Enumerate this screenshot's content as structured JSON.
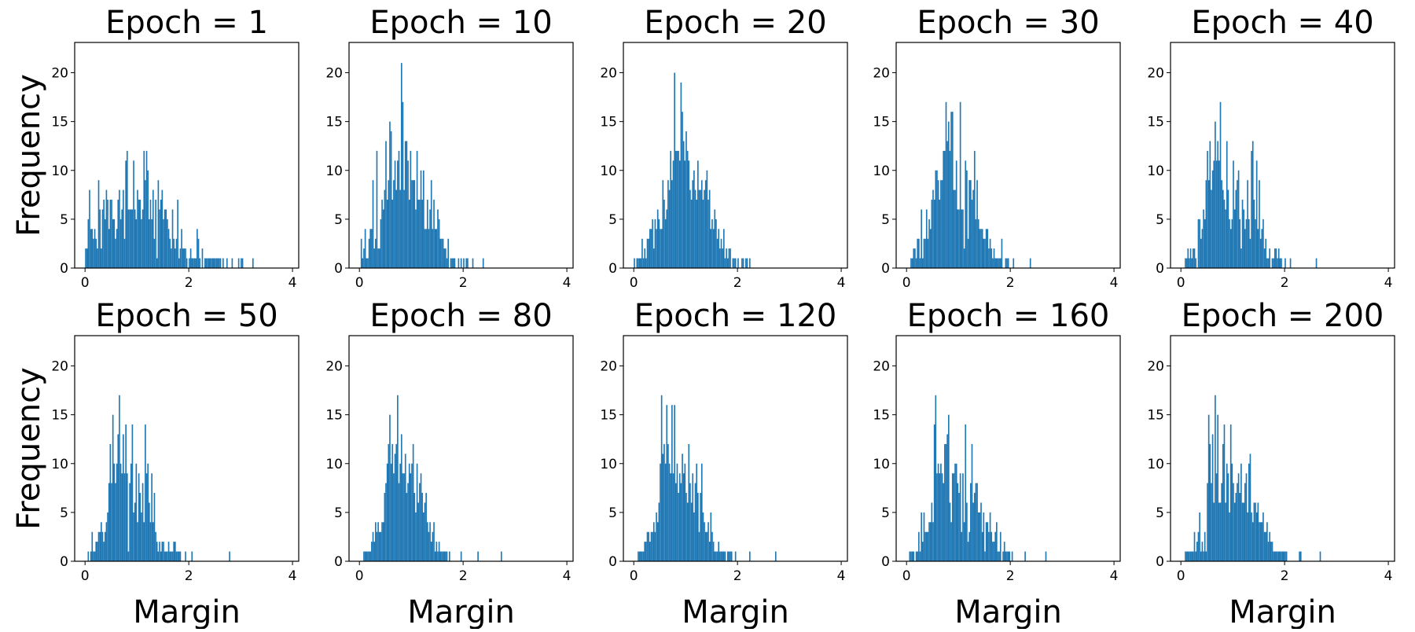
{
  "chart_data": {
    "type": "bar",
    "layout": "2x5 grid of histograms",
    "bar_color": "#1f77b4",
    "bin_start": 0,
    "bin_width": 0.025,
    "xlabel": "Margin",
    "ylabel": "Frequency",
    "xlim": [
      -0.2,
      4.12
    ],
    "ylim": [
      0,
      23.1
    ],
    "xticks": [
      "0",
      "2",
      "4"
    ],
    "yticks": [
      "0",
      "5",
      "10",
      "15",
      "20"
    ],
    "panels": [
      {
        "title": "Epoch = 1",
        "counts": [
          2,
          2,
          5,
          8,
          4,
          4,
          3,
          4,
          3,
          2,
          9,
          6,
          2,
          6,
          7,
          5,
          8,
          7,
          4,
          7,
          7,
          5,
          5,
          3,
          4,
          7,
          8,
          5,
          6,
          8,
          3,
          11,
          12,
          6,
          6,
          6,
          6,
          11,
          6,
          5,
          8,
          7,
          7,
          5,
          6,
          12,
          9,
          12,
          10,
          5,
          7,
          5,
          8,
          3,
          7,
          1,
          9,
          6,
          7,
          8,
          5,
          6,
          6,
          5,
          4,
          3,
          2,
          6,
          3,
          2,
          3,
          7,
          1,
          2,
          4,
          2,
          2,
          2,
          1,
          0,
          1,
          2,
          1,
          1,
          1,
          1,
          4,
          3,
          1,
          0,
          2,
          0,
          1,
          1,
          1,
          1,
          1,
          1,
          1,
          1,
          1,
          1,
          1,
          1,
          1,
          0,
          1,
          0,
          0,
          1,
          0,
          0,
          0,
          1,
          0,
          0,
          0,
          0,
          1,
          0,
          1,
          1,
          0,
          0,
          0,
          0,
          0,
          0,
          0,
          1,
          0,
          0
        ]
      },
      {
        "title": "Epoch = 10",
        "counts": [
          0,
          3,
          1,
          2,
          4,
          1,
          1,
          3,
          4,
          4,
          9,
          2,
          3,
          12,
          2,
          2,
          5,
          7,
          6,
          8,
          13,
          7,
          9,
          15,
          14,
          7,
          9,
          11,
          8,
          11,
          12,
          8,
          21,
          17,
          8,
          13,
          13,
          11,
          7,
          12,
          9,
          9,
          9,
          6,
          12,
          7,
          7,
          10,
          7,
          10,
          4,
          4,
          7,
          4,
          6,
          9,
          4,
          7,
          4,
          4,
          6,
          5,
          3,
          3,
          3,
          2,
          2,
          1,
          3,
          0,
          1,
          1,
          1,
          1,
          0,
          0,
          1,
          0,
          1,
          0,
          1,
          0,
          1,
          1,
          0,
          0,
          0,
          1,
          0,
          0,
          0,
          0,
          0,
          0,
          0,
          1
        ]
      },
      {
        "title": "Epoch = 20",
        "counts": [
          1,
          0,
          1,
          1,
          1,
          1,
          3,
          1,
          2,
          1,
          3,
          3,
          4,
          4,
          5,
          2,
          5,
          4,
          6,
          5,
          4,
          4,
          9,
          7,
          5,
          6,
          9,
          8,
          12,
          9,
          11,
          20,
          12,
          12,
          12,
          11,
          19,
          16,
          13,
          11,
          14,
          12,
          11,
          8,
          7,
          9,
          10,
          8,
          7,
          11,
          8,
          8,
          9,
          7,
          8,
          9,
          10,
          7,
          8,
          4,
          5,
          4,
          6,
          5,
          3,
          4,
          2,
          3,
          2,
          4,
          1,
          2,
          1,
          2,
          2,
          0,
          1,
          1,
          1,
          0,
          1,
          0,
          0,
          1,
          1,
          0,
          1,
          1,
          0,
          1
        ]
      },
      {
        "title": "Epoch = 30",
        "counts": [
          0,
          0,
          0,
          1,
          1,
          2,
          2,
          1,
          3,
          3,
          1,
          6,
          1,
          3,
          3,
          6,
          3,
          5,
          4,
          7,
          8,
          7,
          10,
          10,
          9,
          7,
          9,
          9,
          12,
          12,
          17,
          13,
          15,
          12,
          16,
          16,
          8,
          8,
          11,
          6,
          6,
          17,
          6,
          6,
          2,
          11,
          10,
          3,
          9,
          9,
          7,
          8,
          12,
          5,
          9,
          5,
          4,
          4,
          4,
          3,
          3,
          4,
          4,
          2,
          3,
          2,
          1,
          2,
          1,
          1,
          1,
          1,
          1,
          3,
          0,
          0,
          1,
          1,
          1,
          0,
          0,
          0,
          1,
          0,
          0,
          0,
          0,
          0,
          0,
          0,
          0,
          0,
          0,
          0,
          0,
          1
        ]
      },
      {
        "title": "Epoch = 40",
        "counts": [
          0,
          0,
          0,
          1,
          1,
          2,
          1,
          2,
          1,
          2,
          2,
          1,
          0,
          5,
          5,
          3,
          4,
          6,
          5,
          9,
          12,
          9,
          13,
          8,
          10,
          11,
          15,
          11,
          13,
          11,
          17,
          9,
          8,
          7,
          6,
          13,
          8,
          5,
          4,
          5,
          11,
          6,
          8,
          9,
          10,
          5,
          2,
          7,
          6,
          4,
          5,
          9,
          5,
          3,
          12,
          13,
          7,
          5,
          11,
          4,
          9,
          3,
          4,
          5,
          2,
          3,
          1,
          1,
          2,
          0,
          1,
          1,
          2,
          2,
          1,
          2,
          1,
          1,
          0,
          0,
          1,
          0,
          0,
          0,
          1,
          0,
          0,
          0,
          0,
          0,
          0,
          0,
          0,
          0,
          0,
          0,
          0,
          0,
          0,
          0,
          0,
          0,
          0,
          0,
          1
        ]
      },
      {
        "title": "Epoch = 50",
        "counts": [
          0,
          0,
          1,
          0,
          1,
          3,
          1,
          1,
          2,
          2,
          3,
          3,
          4,
          3,
          2,
          3,
          4,
          5,
          8,
          12,
          8,
          15,
          10,
          8,
          10,
          13,
          17,
          10,
          9,
          13,
          9,
          14,
          9,
          1,
          8,
          10,
          14,
          5,
          6,
          10,
          4,
          9,
          7,
          5,
          8,
          4,
          14,
          9,
          10,
          6,
          4,
          9,
          4,
          7,
          3,
          2,
          1,
          2,
          1,
          2,
          2,
          1,
          1,
          1,
          2,
          1,
          1,
          1,
          2,
          2,
          1,
          1,
          1,
          1,
          0,
          0,
          0,
          1,
          0,
          0,
          0,
          0,
          1,
          0,
          0,
          0,
          0,
          0,
          0,
          0,
          0,
          0,
          0,
          0,
          0,
          0,
          0,
          0,
          0,
          0,
          0,
          0,
          0,
          0,
          0,
          0,
          0,
          0,
          0,
          0,
          0,
          1
        ]
      },
      {
        "title": "Epoch = 80",
        "counts": [
          0,
          0,
          0,
          1,
          1,
          1,
          1,
          1,
          1,
          2,
          3,
          2,
          4,
          3,
          4,
          3,
          3,
          4,
          4,
          7,
          8,
          10,
          12,
          15,
          10,
          12,
          9,
          11,
          12,
          17,
          8,
          10,
          13,
          9,
          9,
          11,
          7,
          8,
          10,
          9,
          10,
          12,
          7,
          5,
          10,
          6,
          8,
          9,
          7,
          5,
          6,
          7,
          4,
          3,
          4,
          2,
          3,
          4,
          1,
          2,
          1,
          2,
          1,
          1,
          1,
          1,
          1,
          1,
          0,
          1,
          0,
          0,
          0,
          0,
          0,
          0,
          0,
          0,
          1,
          0,
          0,
          0,
          0,
          0,
          0,
          0,
          0,
          0,
          0,
          0,
          0,
          1,
          0,
          0,
          0,
          0,
          0,
          0,
          0,
          0,
          0,
          0,
          0,
          0,
          0,
          0,
          0,
          0,
          0,
          1
        ]
      },
      {
        "title": "Epoch = 120",
        "counts": [
          0,
          0,
          0,
          1,
          1,
          1,
          1,
          1,
          2,
          2,
          3,
          3,
          2,
          3,
          3,
          4,
          3,
          5,
          4,
          6,
          10,
          17,
          11,
          12,
          10,
          16,
          12,
          10,
          9,
          16,
          9,
          16,
          8,
          10,
          7,
          9,
          8,
          11,
          9,
          10,
          7,
          6,
          12,
          8,
          6,
          9,
          5,
          8,
          10,
          7,
          3,
          7,
          10,
          5,
          4,
          3,
          3,
          4,
          2,
          5,
          3,
          2,
          1,
          1,
          1,
          2,
          1,
          1,
          1,
          1,
          1,
          0,
          1,
          1,
          1,
          1,
          0,
          0,
          1,
          0,
          0,
          0,
          0,
          0,
          0,
          0,
          0,
          0,
          0,
          1,
          0,
          0,
          0,
          0,
          0,
          0,
          0,
          0,
          0,
          0,
          0,
          0,
          0,
          0,
          0,
          0,
          0,
          0,
          0,
          1
        ]
      },
      {
        "title": "Epoch = 160",
        "counts": [
          0,
          0,
          1,
          1,
          1,
          1,
          0,
          1,
          1,
          3,
          1,
          5,
          2,
          5,
          3,
          3,
          3,
          4,
          4,
          6,
          4,
          14,
          17,
          9,
          10,
          9,
          10,
          9,
          8,
          12,
          12,
          13,
          15,
          6,
          4,
          9,
          9,
          10,
          10,
          8,
          7,
          9,
          3,
          9,
          4,
          14,
          6,
          2,
          3,
          8,
          12,
          6,
          7,
          8,
          8,
          5,
          5,
          6,
          3,
          5,
          1,
          4,
          4,
          3,
          5,
          3,
          2,
          2,
          3,
          4,
          1,
          1,
          3,
          0,
          1,
          2,
          1,
          1,
          1,
          1,
          0,
          1,
          0,
          0,
          0,
          0,
          0,
          0,
          0,
          0,
          0,
          1,
          0,
          0,
          0,
          0,
          0,
          0,
          0,
          0,
          0,
          0,
          0,
          0,
          0,
          0,
          0,
          1
        ]
      },
      {
        "title": "Epoch = 200",
        "counts": [
          0,
          0,
          0,
          1,
          1,
          1,
          1,
          1,
          1,
          1,
          3,
          1,
          2,
          3,
          5,
          1,
          2,
          1,
          3,
          1,
          8,
          15,
          12,
          8,
          13,
          6,
          17,
          9,
          15,
          6,
          6,
          8,
          12,
          14,
          6,
          10,
          9,
          5,
          14,
          10,
          8,
          6,
          7,
          8,
          9,
          7,
          10,
          6,
          6,
          8,
          9,
          5,
          10,
          11,
          5,
          4,
          6,
          6,
          5,
          6,
          4,
          4,
          4,
          5,
          3,
          3,
          4,
          2,
          3,
          2,
          2,
          1,
          1,
          1,
          1,
          1,
          1,
          1,
          1,
          1,
          1,
          1,
          0,
          0,
          0,
          0,
          0,
          0,
          0,
          0,
          0,
          1,
          1,
          0,
          0,
          0,
          0,
          0,
          0,
          0,
          0,
          0,
          0,
          0,
          0,
          0,
          0,
          1
        ]
      }
    ]
  }
}
